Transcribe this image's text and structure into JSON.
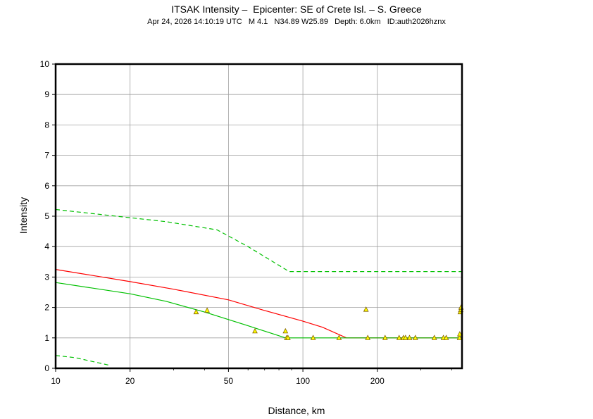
{
  "chart_data": {
    "type": "scatter",
    "title": "ITSAK Intensity –  Epicenter: SE of Crete Isl. – S. Greece",
    "subtitle": "Apr 24, 2026 14:10:19 UTC   M 4.1   N34.89 W25.89   Depth: 6.0km   ID:auth2026hznx",
    "xlabel": "Distance, km",
    "ylabel": "Intensity",
    "x_scale": "log",
    "xlim": [
      10,
      440
    ],
    "ylim": [
      0,
      10
    ],
    "grid": true,
    "x_ticks": [
      10,
      20,
      50,
      100,
      200
    ],
    "x_tick_labels": [
      "10",
      "20",
      "50",
      "100",
      "200"
    ],
    "y_ticks": [
      0,
      1,
      2,
      3,
      4,
      5,
      6,
      7,
      8,
      9,
      10
    ],
    "y_tick_labels": [
      "0",
      "1",
      "2",
      "3",
      "4",
      "5",
      "6",
      "7",
      "8",
      "9",
      "10"
    ],
    "series": [
      {
        "style": "solid",
        "color": "#ff0000",
        "x": [
          10,
          20,
          30,
          50,
          70,
          100,
          120,
          150,
          440
        ],
        "y": [
          3.25,
          2.85,
          2.6,
          2.25,
          1.9,
          1.55,
          1.35,
          1.0,
          1.0
        ]
      },
      {
        "style": "solid",
        "color": "#00c000",
        "x": [
          10,
          20,
          28,
          40,
          60,
          85,
          440
        ],
        "y": [
          2.82,
          2.45,
          2.2,
          1.85,
          1.4,
          1.0,
          1.0
        ]
      },
      {
        "style": "dashed",
        "color": "#00c000",
        "x": [
          10,
          20,
          28,
          45,
          60,
          88,
          440
        ],
        "y": [
          5.22,
          4.95,
          4.82,
          4.55,
          4.0,
          3.18,
          3.18
        ]
      },
      {
        "style": "dashed",
        "color": "#00c000",
        "x": [
          10,
          12,
          16.5
        ],
        "y": [
          0.42,
          0.35,
          0.1
        ]
      }
    ],
    "points": {
      "marker": "triangle",
      "fill": "#ffff00",
      "stroke": "#806000",
      "x": [
        37,
        41,
        64,
        85,
        86,
        87,
        110,
        140,
        180,
        183,
        215,
        245,
        255,
        260,
        270,
        285,
        340,
        370,
        380,
        430,
        431,
        433,
        435,
        436
      ],
      "y": [
        1.85,
        1.9,
        1.22,
        1.22,
        1.0,
        1.0,
        1.0,
        1.0,
        1.93,
        1.0,
        1.0,
        1.0,
        1.0,
        1.0,
        1.0,
        1.0,
        1.0,
        1.0,
        1.0,
        1.0,
        1.12,
        1.85,
        1.92,
        2.0
      ]
    }
  }
}
